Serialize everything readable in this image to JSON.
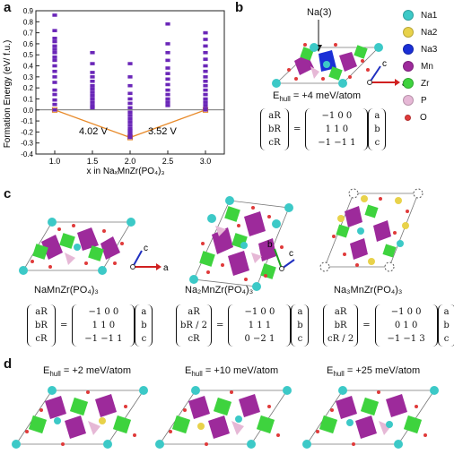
{
  "panels": {
    "a": "a",
    "b": "b",
    "c": "c",
    "d": "d"
  },
  "chart_data": {
    "type": "scatter",
    "xlabel": "x in NaₓMnZr(PO₄)₃",
    "ylabel": "Formation Energy (eV/ f.u.)",
    "xlim": [
      0.75,
      3.25
    ],
    "ylim": [
      -0.4,
      0.9
    ],
    "xticks": [
      "1.0",
      "1.5",
      "2.0",
      "2.5",
      "3.0"
    ],
    "yticks": [
      "-0.4",
      "-0.3",
      "-0.2",
      "-0.1",
      "0.0",
      "0.1",
      "0.2",
      "0.3",
      "0.4",
      "0.5",
      "0.6",
      "0.7",
      "0.8",
      "0.9"
    ],
    "series": [
      {
        "points": [
          {
            "x": 1.0,
            "y": 0.86
          },
          {
            "x": 1.0,
            "y": 0.72
          },
          {
            "x": 1.0,
            "y": 0.65
          },
          {
            "x": 1.0,
            "y": 0.62
          },
          {
            "x": 1.0,
            "y": 0.58
          },
          {
            "x": 1.0,
            "y": 0.55
          },
          {
            "x": 1.0,
            "y": 0.52
          },
          {
            "x": 1.0,
            "y": 0.48
          },
          {
            "x": 1.0,
            "y": 0.45
          },
          {
            "x": 1.0,
            "y": 0.4
          },
          {
            "x": 1.0,
            "y": 0.35
          },
          {
            "x": 1.0,
            "y": 0.3
          },
          {
            "x": 1.0,
            "y": 0.25
          },
          {
            "x": 1.0,
            "y": 0.18
          },
          {
            "x": 1.0,
            "y": 0.14
          },
          {
            "x": 1.0,
            "y": 0.09
          },
          {
            "x": 1.0,
            "y": 0.05
          },
          {
            "x": 1.0,
            "y": 0.0
          },
          {
            "x": 1.5,
            "y": 0.52
          },
          {
            "x": 1.5,
            "y": 0.42
          },
          {
            "x": 1.5,
            "y": 0.34
          },
          {
            "x": 1.5,
            "y": 0.3
          },
          {
            "x": 1.5,
            "y": 0.26
          },
          {
            "x": 1.5,
            "y": 0.22
          },
          {
            "x": 1.5,
            "y": 0.19
          },
          {
            "x": 1.5,
            "y": 0.16
          },
          {
            "x": 1.5,
            "y": 0.13
          },
          {
            "x": 1.5,
            "y": 0.1
          },
          {
            "x": 1.5,
            "y": 0.07
          },
          {
            "x": 1.5,
            "y": 0.04
          },
          {
            "x": 1.5,
            "y": 0.02
          },
          {
            "x": 2.0,
            "y": 0.42
          },
          {
            "x": 2.0,
            "y": 0.3
          },
          {
            "x": 2.0,
            "y": 0.22
          },
          {
            "x": 2.0,
            "y": 0.15
          },
          {
            "x": 2.0,
            "y": 0.1
          },
          {
            "x": 2.0,
            "y": 0.06
          },
          {
            "x": 2.0,
            "y": 0.02
          },
          {
            "x": 2.0,
            "y": -0.02
          },
          {
            "x": 2.0,
            "y": -0.05
          },
          {
            "x": 2.0,
            "y": -0.08
          },
          {
            "x": 2.0,
            "y": -0.11
          },
          {
            "x": 2.0,
            "y": -0.14
          },
          {
            "x": 2.0,
            "y": -0.17
          },
          {
            "x": 2.0,
            "y": -0.19
          },
          {
            "x": 2.0,
            "y": -0.21
          },
          {
            "x": 2.0,
            "y": -0.23
          },
          {
            "x": 2.0,
            "y": -0.25
          },
          {
            "x": 2.5,
            "y": 0.78
          },
          {
            "x": 2.5,
            "y": 0.6
          },
          {
            "x": 2.5,
            "y": 0.52
          },
          {
            "x": 2.5,
            "y": 0.45
          },
          {
            "x": 2.5,
            "y": 0.38
          },
          {
            "x": 2.5,
            "y": 0.33
          },
          {
            "x": 2.5,
            "y": 0.28
          },
          {
            "x": 2.5,
            "y": 0.23
          },
          {
            "x": 2.5,
            "y": 0.18
          },
          {
            "x": 2.5,
            "y": 0.14
          },
          {
            "x": 2.5,
            "y": 0.1
          },
          {
            "x": 2.5,
            "y": 0.07
          },
          {
            "x": 2.5,
            "y": 0.04
          },
          {
            "x": 3.0,
            "y": 0.7
          },
          {
            "x": 3.0,
            "y": 0.64
          },
          {
            "x": 3.0,
            "y": 0.58
          },
          {
            "x": 3.0,
            "y": 0.52
          },
          {
            "x": 3.0,
            "y": 0.46
          },
          {
            "x": 3.0,
            "y": 0.4
          },
          {
            "x": 3.0,
            "y": 0.35
          },
          {
            "x": 3.0,
            "y": 0.3
          },
          {
            "x": 3.0,
            "y": 0.26
          },
          {
            "x": 3.0,
            "y": 0.22
          },
          {
            "x": 3.0,
            "y": 0.18
          },
          {
            "x": 3.0,
            "y": 0.14
          },
          {
            "x": 3.0,
            "y": 0.1
          },
          {
            "x": 3.0,
            "y": 0.07
          },
          {
            "x": 3.0,
            "y": 0.04
          },
          {
            "x": 3.0,
            "y": 0.01
          },
          {
            "x": 3.0,
            "y": 0.0
          }
        ]
      }
    ],
    "hull": [
      {
        "x": 1.0,
        "y": 0.0
      },
      {
        "x": 2.0,
        "y": -0.25
      },
      {
        "x": 3.0,
        "y": 0.0
      }
    ],
    "annotations": [
      "4.02 V",
      "3.52 V"
    ]
  },
  "panel_b": {
    "na3_label": "Na(3)",
    "ehull": "E",
    "ehull_sub": "hull",
    "ehull_value": " = +4 meV/atom",
    "legend": [
      {
        "name": "Na1",
        "color": "#3cc9c7"
      },
      {
        "name": "Na2",
        "color": "#e8d24a"
      },
      {
        "name": "Na3",
        "color": "#1a2fd6"
      },
      {
        "name": "Mn",
        "color": "#9d2a9b"
      },
      {
        "name": "Zr",
        "color": "#3ed33e"
      },
      {
        "name": "P",
        "color": "#e6b8d6"
      },
      {
        "name": "O",
        "color": "#e03a3a"
      }
    ],
    "matrix_rows": [
      "−1  0  0",
      "1  1  0",
      "−1  −1  1"
    ]
  },
  "panel_c": {
    "structures": [
      {
        "formula": "NaMnZr(PO₄)₃",
        "matrix_lhs": [
          "aR",
          "bR",
          "cR"
        ],
        "matrix": [
          "−1  0  0",
          "1  1  0",
          "−1  −1  1"
        ]
      },
      {
        "formula": "Na₂MnZr(PO₄)₃",
        "matrix_lhs": [
          "aR",
          "bR / 2",
          "cR"
        ],
        "matrix": [
          "−1  0  0",
          "1  1  1",
          "0  −2  1"
        ]
      },
      {
        "formula": "Na₃MnZr(PO₄)₃",
        "matrix_lhs": [
          "aR",
          "bR",
          "cR / 2"
        ],
        "matrix": [
          "−1  0  0",
          "0  1  0",
          "−1  −1  3"
        ]
      }
    ]
  },
  "panel_d": {
    "energies": [
      "E",
      "E",
      "E"
    ],
    "energies_sub": "hull",
    "values": [
      " = +2 meV/atom",
      " = +10 meV/atom",
      " = +25 meV/atom"
    ]
  },
  "vector_rhs": [
    "a",
    "b",
    "c"
  ],
  "axis_labels": {
    "a": "a",
    "b": "b",
    "c": "c"
  }
}
